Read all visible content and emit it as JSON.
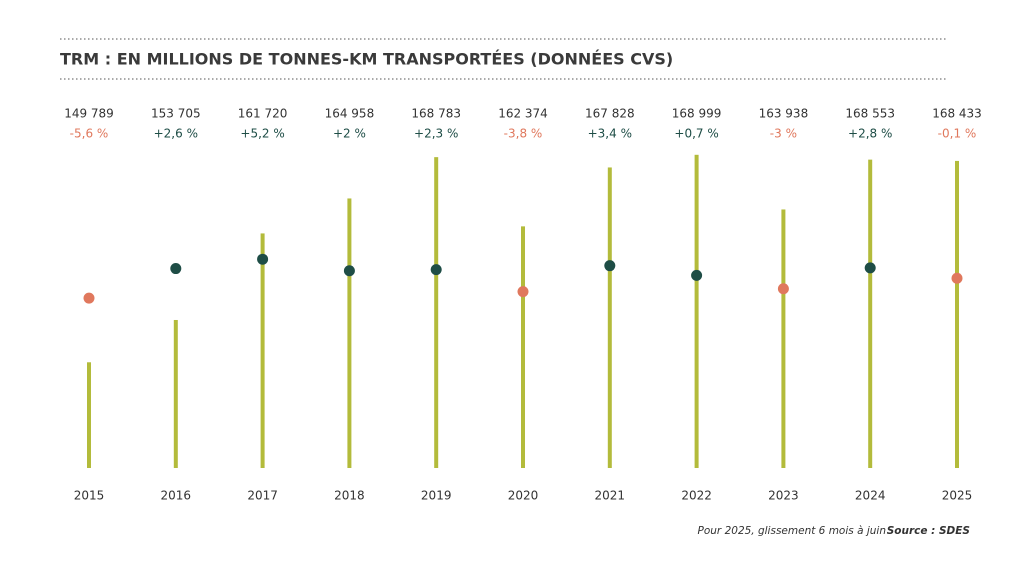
{
  "chart_data": {
    "type": "bar",
    "title": "TRM : EN MILLIONS DE TONNES-KM TRANSPORTÉES (DONNÉES CVS)",
    "categories": [
      "2015",
      "2016",
      "2017",
      "2018",
      "2019",
      "2020",
      "2021",
      "2022",
      "2023",
      "2024",
      "2025"
    ],
    "series": [
      {
        "type": "bar",
        "color": "#b3bb3b",
        "values": [
          149789,
          153705,
          161720,
          164958,
          168783,
          162374,
          167828,
          168999,
          163938,
          168553,
          168433
        ],
        "value_labels": [
          "149 789",
          "153 705",
          "161 720",
          "164 958",
          "168 783",
          "162 374",
          "167 828",
          "168 999",
          "163 938",
          "168 553",
          "168 433"
        ]
      },
      {
        "type": "dot",
        "axis": "y2",
        "color": "#1e4d46",
        "negative_color": "#e0785d",
        "values": [
          -5.6,
          2.6,
          5.2,
          2,
          2.3,
          -3.8,
          3.4,
          0.7,
          -3,
          2.8,
          -0.1
        ],
        "value_labels": [
          "-5,6 %",
          "+2,6 %",
          "+5,2 %",
          "+2 %",
          "+2,3 %",
          "-3,8 %",
          "+3,4 %",
          "+0,7 %",
          "-3 %",
          "+2,8 %",
          "-0,1 %"
        ]
      }
    ],
    "ylim": [
      140000,
      170000
    ],
    "y2lim": [
      -52.8,
      37.2
    ],
    "note": "Pour 2025, glissement 6 mois à juin",
    "source": "Source : SDES"
  }
}
